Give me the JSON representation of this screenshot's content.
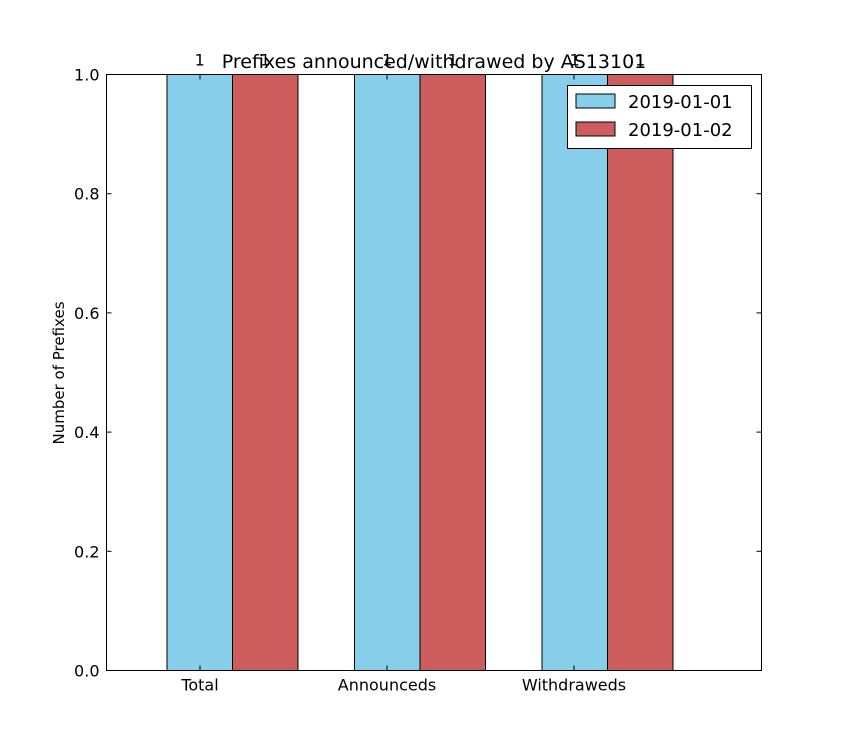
{
  "chart_data": {
    "type": "bar",
    "title": "Prefixes announced/withdrawed by AS13101",
    "xlabel": "",
    "ylabel": "Number of Prefixes",
    "categories": [
      "Total",
      "Announceds",
      "Withdraweds"
    ],
    "series": [
      {
        "name": "2019-01-01",
        "values": [
          1,
          1,
          1
        ],
        "color": "#87ceeb"
      },
      {
        "name": "2019-01-02",
        "values": [
          1,
          1,
          1
        ],
        "color": "#cd5c5c"
      }
    ],
    "data_labels": [
      "1",
      "1",
      "1",
      "1",
      "1",
      "1"
    ],
    "ylim": [
      0,
      1.0
    ],
    "yticks": [
      "0.0",
      "0.2",
      "0.4",
      "0.6",
      "0.8",
      "1.0"
    ],
    "grid": false,
    "legend_position": "top-right"
  }
}
